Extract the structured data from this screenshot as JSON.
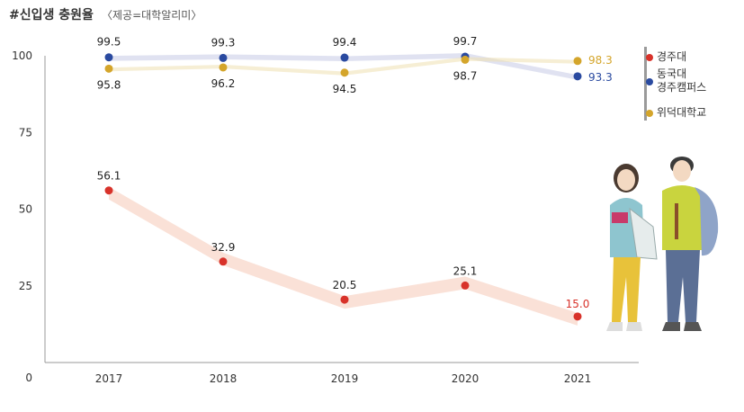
{
  "title": "#신입생 충원율",
  "subtitle": "〈제공=대학알리미〉",
  "colors": {
    "red": "#d8322a",
    "blue": "#2a4aa0",
    "gold": "#d4a52b",
    "axis": "#9a9a9a"
  },
  "chart_data": {
    "type": "line",
    "categories": [
      "2017",
      "2018",
      "2019",
      "2020",
      "2021"
    ],
    "ylim": [
      0,
      100
    ],
    "yticks": [
      "0",
      "25",
      "50",
      "75",
      "100"
    ],
    "series": [
      {
        "name": "경주대",
        "color": "#d8322a",
        "values": [
          56.1,
          32.9,
          20.5,
          25.1,
          15.0
        ],
        "labels": [
          "56.1",
          "32.9",
          "20.5",
          "25.1",
          "15.0"
        ]
      },
      {
        "name": "동국대 경주캠퍼스",
        "color": "#2a4aa0",
        "values": [
          99.5,
          99.3,
          99.4,
          99.7,
          93.3
        ],
        "labels": [
          "99.5",
          "99.3",
          "99.4",
          "99.7",
          "93.3"
        ]
      },
      {
        "name": "위덕대학교",
        "color": "#d4a52b",
        "values": [
          95.8,
          96.2,
          94.5,
          98.7,
          98.3
        ],
        "labels": [
          "95.8",
          "96.2",
          "94.5",
          "98.7",
          "98.3"
        ]
      }
    ]
  },
  "legend": [
    {
      "lines": [
        "경주대"
      ],
      "color": "#d8322a"
    },
    {
      "lines": [
        "동국대",
        "경주캠퍼스"
      ],
      "color": "#2a4aa0"
    },
    {
      "lines": [
        "위덕대학교"
      ],
      "color": "#d4a52b"
    }
  ]
}
